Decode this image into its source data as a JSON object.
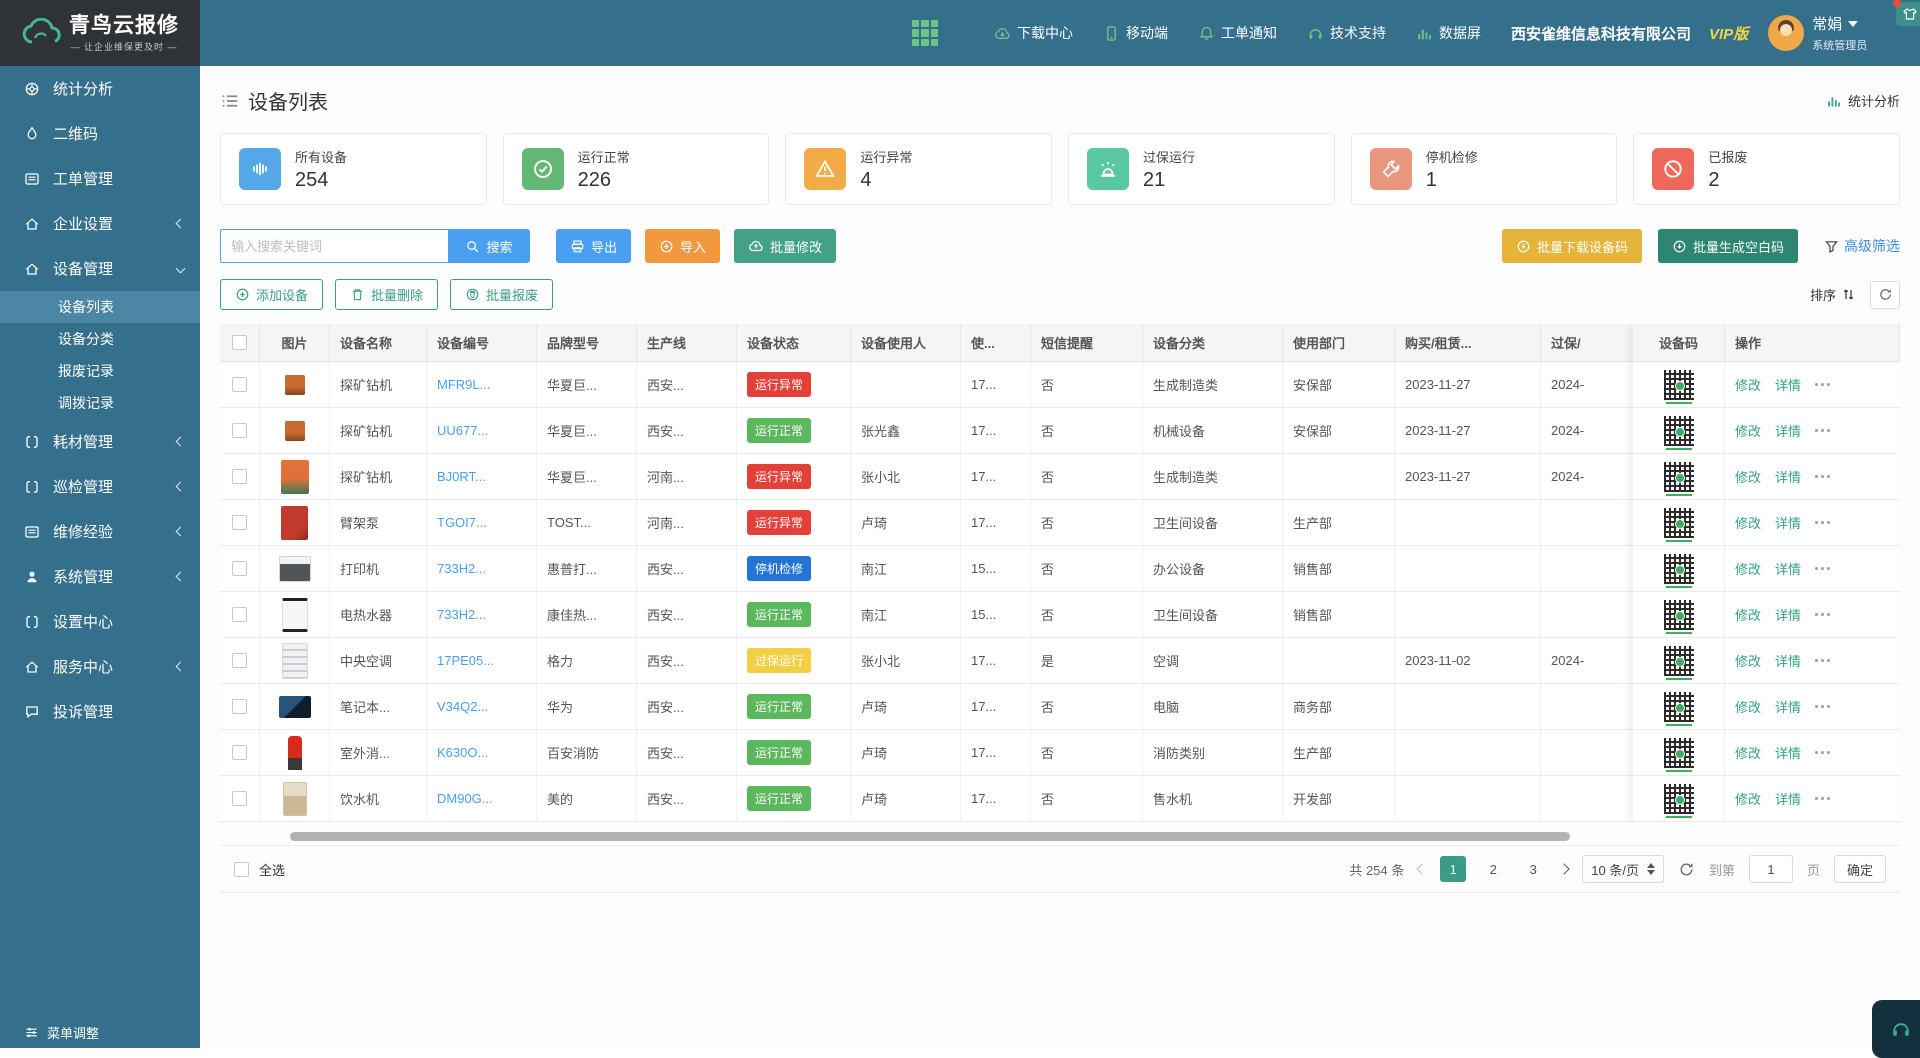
{
  "brand": {
    "name": "青鸟云报修",
    "tagline": "— 让企业维保更及时 —"
  },
  "topnav": {
    "items": [
      {
        "label": "下载中心",
        "icon": "cloud-download-icon"
      },
      {
        "label": "移动端",
        "icon": "mobile-icon"
      },
      {
        "label": "工单通知",
        "icon": "bell-icon"
      },
      {
        "label": "技术支持",
        "icon": "headset-icon"
      },
      {
        "label": "数据屏",
        "icon": "bar-chart-icon"
      }
    ],
    "company": "西安雀维信息科技有限公司",
    "vip": "VIP版",
    "user": {
      "name": "常娟",
      "role": "系统管理员"
    }
  },
  "sidebar": {
    "items": [
      {
        "label": "统计分析",
        "icon": "dashboard-icon",
        "chevron": ""
      },
      {
        "label": "二维码",
        "icon": "qrcode-icon",
        "chevron": ""
      },
      {
        "label": "工单管理",
        "icon": "workorder-icon",
        "chevron": ""
      },
      {
        "label": "企业设置",
        "icon": "company-icon",
        "chevron": "left"
      },
      {
        "label": "设备管理",
        "icon": "device-icon",
        "chevron": "down",
        "children": [
          "设备列表",
          "设备分类",
          "报废记录",
          "调拨记录"
        ],
        "active_child": 0
      },
      {
        "label": "耗材管理",
        "icon": "consumable-icon",
        "chevron": "left"
      },
      {
        "label": "巡检管理",
        "icon": "inspection-icon",
        "chevron": "left"
      },
      {
        "label": "维修经验",
        "icon": "experience-icon",
        "chevron": "left"
      },
      {
        "label": "系统管理",
        "icon": "system-icon",
        "chevron": "left"
      },
      {
        "label": "设置中心",
        "icon": "settings-icon",
        "chevron": ""
      },
      {
        "label": "服务中心",
        "icon": "service-icon",
        "chevron": "left"
      },
      {
        "label": "投诉管理",
        "icon": "complaint-icon",
        "chevron": ""
      }
    ],
    "footer": "菜单调整"
  },
  "page": {
    "title": "设备列表",
    "stats_link": "统计分析"
  },
  "stats": [
    {
      "label": "所有设备",
      "value": "254",
      "color": "#56a7e8"
    },
    {
      "label": "运行正常",
      "value": "226",
      "color": "#63b876"
    },
    {
      "label": "运行异常",
      "value": "4",
      "color": "#f3ab47"
    },
    {
      "label": "过保运行",
      "value": "21",
      "color": "#58c7a2"
    },
    {
      "label": "停机检修",
      "value": "1",
      "color": "#e9967f"
    },
    {
      "label": "已报废",
      "value": "2",
      "color": "#f0685c"
    }
  ],
  "toolbar": {
    "search_placeholder": "输入搜索关键词",
    "search": "搜索",
    "export": "导出",
    "import": "导入",
    "batch_edit": "批量修改",
    "batch_download": "批量下载设备码",
    "batch_blank": "批量生成空白码",
    "adv_filter": "高级筛选"
  },
  "actions": {
    "add": "添加设备",
    "batch_delete": "批量删除",
    "batch_scrap": "批量报废",
    "sort": "排序"
  },
  "table": {
    "columns": [
      "",
      "图片",
      "设备名称",
      "设备编号",
      "品牌型号",
      "生产线",
      "设备状态",
      "设备使用人",
      "使...",
      "短信提醒",
      "设备分类",
      "使用部门",
      "购买/租赁...",
      "过保/",
      "设备码",
      "操作"
    ],
    "status_colors": {
      "error": "#e3403a",
      "ok": "#5cb85c",
      "maintenance": "#2374d6",
      "expired": "#f3cf45"
    },
    "rows": [
      {
        "name": "探矿钻机",
        "code": "MFR9L...",
        "brand": "华夏巨...",
        "line": "西安...",
        "status": "运行异常",
        "status_type": "error",
        "user": "",
        "use": "17...",
        "sms": "否",
        "category": "生成制造类",
        "dept": "安保部",
        "buy_date": "2023-11-27",
        "expire": "2024-",
        "photo": "drill-small"
      },
      {
        "name": "探矿钻机",
        "code": "UU677...",
        "brand": "华夏巨...",
        "line": "西安...",
        "status": "运行正常",
        "status_type": "ok",
        "user": "张光鑫",
        "use": "17...",
        "sms": "否",
        "category": "机械设备",
        "dept": "安保部",
        "buy_date": "2023-11-27",
        "expire": "2024-",
        "photo": "drill-small"
      },
      {
        "name": "探矿钻机",
        "code": "BJ0RT...",
        "brand": "华夏巨...",
        "line": "河南...",
        "status": "运行异常",
        "status_type": "error",
        "user": "张小北",
        "use": "17...",
        "sms": "否",
        "category": "生成制造类",
        "dept": "",
        "buy_date": "2023-11-27",
        "expire": "2024-",
        "photo": "drill-large"
      },
      {
        "name": "臂架泵",
        "code": "TGOI7...",
        "brand": "TOST...",
        "line": "河南...",
        "status": "运行异常",
        "status_type": "error",
        "user": "卢琦",
        "use": "17...",
        "sms": "否",
        "category": "卫生间设备",
        "dept": "生产部",
        "buy_date": "",
        "expire": "",
        "photo": "pump"
      },
      {
        "name": "打印机",
        "code": "733H2...",
        "brand": "惠普打...",
        "line": "西安...",
        "status": "停机检修",
        "status_type": "maintenance",
        "user": "南江",
        "use": "15...",
        "sms": "否",
        "category": "办公设备",
        "dept": "销售部",
        "buy_date": "",
        "expire": "",
        "photo": "printer"
      },
      {
        "name": "电热水器",
        "code": "733H2...",
        "brand": "康佳热...",
        "line": "西安...",
        "status": "运行正常",
        "status_type": "ok",
        "user": "南江",
        "use": "15...",
        "sms": "否",
        "category": "卫生间设备",
        "dept": "销售部",
        "buy_date": "",
        "expire": "",
        "photo": "heater"
      },
      {
        "name": "中央空调",
        "code": "17PE05...",
        "brand": "格力",
        "line": "西安...",
        "status": "过保运行",
        "status_type": "expired",
        "user": "张小北",
        "use": "17...",
        "sms": "是",
        "category": "空调",
        "dept": "",
        "buy_date": "2023-11-02",
        "expire": "2024-",
        "photo": "ac"
      },
      {
        "name": "笔记本...",
        "code": "V34Q2...",
        "brand": "华为",
        "line": "西安...",
        "status": "运行正常",
        "status_type": "ok",
        "user": "卢琦",
        "use": "17...",
        "sms": "否",
        "category": "电脑",
        "dept": "商务部",
        "buy_date": "",
        "expire": "",
        "photo": "laptop"
      },
      {
        "name": "室外消...",
        "code": "K630O...",
        "brand": "百安消防",
        "line": "西安...",
        "status": "运行正常",
        "status_type": "ok",
        "user": "卢琦",
        "use": "17...",
        "sms": "否",
        "category": "消防类别",
        "dept": "生产部",
        "buy_date": "",
        "expire": "",
        "photo": "hydrant"
      },
      {
        "name": "饮水机",
        "code": "DM90G...",
        "brand": "美的",
        "line": "西安...",
        "status": "运行正常",
        "status_type": "ok",
        "user": "卢琦",
        "use": "17...",
        "sms": "否",
        "category": "售水机",
        "dept": "开发部",
        "buy_date": "",
        "expire": "",
        "photo": "dispenser"
      }
    ]
  },
  "row_actions": {
    "edit": "修改",
    "detail": "详情",
    "more": "..."
  },
  "pagination": {
    "select_all": "全选",
    "total_label": "共 254 条",
    "pages": [
      "1",
      "2",
      "3"
    ],
    "active_page": 0,
    "page_size": "10 条/页",
    "goto_prefix": "到第",
    "goto_value": "1",
    "goto_suffix": "页",
    "confirm": "确定"
  }
}
